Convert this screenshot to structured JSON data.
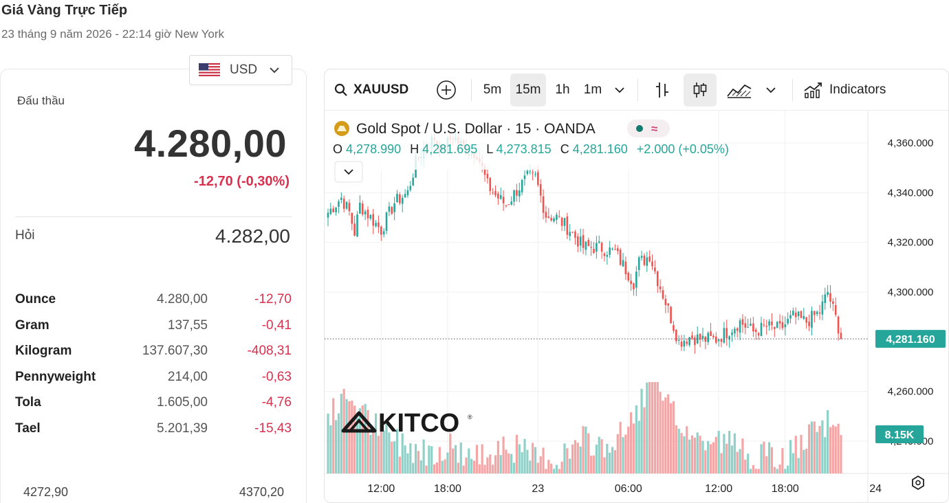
{
  "page": {
    "title": "Giá Vàng Trực Tiếp",
    "subtitle": "23 tháng 9 năm 2026 - 22:14 giờ New York"
  },
  "currency": {
    "code": "USD"
  },
  "quote": {
    "bid_label": "Đấu thầu",
    "bid_value": "4.280,00",
    "bid_change": "-12,70 (-0,30%)",
    "ask_label": "Hỏi",
    "ask_value": "4.282,00"
  },
  "units": [
    {
      "name": "Ounce",
      "price": "4.280,00",
      "change": "-12,70"
    },
    {
      "name": "Gram",
      "price": "137,55",
      "change": "-0,41"
    },
    {
      "name": "Kilogram",
      "price": "137.607,30",
      "change": "-408,31"
    },
    {
      "name": "Pennyweight",
      "price": "214,00",
      "change": "-0,63"
    },
    {
      "name": "Tola",
      "price": "1.605,00",
      "change": "-4,76"
    },
    {
      "name": "Tael",
      "price": "5.201,39",
      "change": "-15,43"
    }
  ],
  "range": {
    "low": "4272,90",
    "high": "4370,20"
  },
  "toolbar": {
    "symbol": "XAUUSD",
    "intervals": [
      "5m",
      "15m",
      "1h",
      "1m"
    ],
    "active_interval": "15m",
    "indicators_label": "Indicators"
  },
  "chart_header": {
    "title": "Gold Spot / U.S. Dollar · 15 · OANDA",
    "o_label": "O",
    "o_value": "4,278.990",
    "h_label": "H",
    "h_value": "4,281.695",
    "l_label": "L",
    "l_value": "4,273.815",
    "c_label": "C",
    "c_value": "4,281.160",
    "change": "+2.000 (+0.05%)"
  },
  "watermark": "KITCO",
  "colors": {
    "up": "#26a69a",
    "down": "#ef5350",
    "up_vol": "#8fd1c8",
    "down_vol": "#f4a6a6",
    "negative_text": "#d9304e",
    "price_tag": "#26a69a"
  },
  "chart_data": {
    "type": "candlestick",
    "x_ticks": [
      "12:00",
      "18:00",
      "23",
      "06:00",
      "12:00",
      "18:00",
      "24"
    ],
    "y_ticks": [
      "4,360.000",
      "4,340.000",
      "4,320.000",
      "4,300.000",
      "4,260.000",
      "4,240.000"
    ],
    "ylim": [
      4227,
      4373
    ],
    "last_price": 4281.16,
    "last_price_label": "4,281.160",
    "volume_label": "8.15K",
    "close_anchors": [
      [
        0,
        4332
      ],
      [
        5,
        4338
      ],
      [
        8,
        4332
      ],
      [
        10,
        4324
      ],
      [
        12,
        4335
      ],
      [
        16,
        4330
      ],
      [
        20,
        4325
      ],
      [
        25,
        4336
      ],
      [
        30,
        4340
      ],
      [
        33,
        4352
      ],
      [
        36,
        4358
      ],
      [
        40,
        4362
      ],
      [
        43,
        4357
      ],
      [
        47,
        4363
      ],
      [
        51,
        4358
      ],
      [
        56,
        4356
      ],
      [
        60,
        4343
      ],
      [
        63,
        4339
      ],
      [
        67,
        4335
      ],
      [
        71,
        4341
      ],
      [
        75,
        4346
      ],
      [
        78,
        4346
      ],
      [
        82,
        4331
      ],
      [
        86,
        4330
      ],
      [
        91,
        4325
      ],
      [
        96,
        4318
      ],
      [
        102,
        4318
      ],
      [
        108,
        4316
      ],
      [
        115,
        4304
      ],
      [
        117,
        4312
      ],
      [
        119,
        4313
      ],
      [
        121,
        4315
      ],
      [
        124,
        4305
      ],
      [
        127,
        4296
      ],
      [
        132,
        4280
      ],
      [
        136,
        4282
      ],
      [
        141,
        4281
      ],
      [
        146,
        4281
      ],
      [
        150,
        4284
      ],
      [
        155,
        4288
      ],
      [
        160,
        4284
      ],
      [
        165,
        4286
      ],
      [
        170,
        4285
      ],
      [
        175,
        4290
      ],
      [
        180,
        4288
      ],
      [
        185,
        4292
      ],
      [
        188,
        4300
      ],
      [
        192,
        4286
      ],
      [
        193,
        4281
      ]
    ],
    "volume_anchors": [
      [
        0,
        0.6
      ],
      [
        8,
        0.85
      ],
      [
        16,
        0.55
      ],
      [
        26,
        0.35
      ],
      [
        36,
        0.25
      ],
      [
        46,
        0.3
      ],
      [
        56,
        0.15
      ],
      [
        66,
        0.35
      ],
      [
        76,
        0.18
      ],
      [
        86,
        0.15
      ],
      [
        96,
        0.35
      ],
      [
        106,
        0.3
      ],
      [
        112,
        0.45
      ],
      [
        118,
        0.8
      ],
      [
        122,
        1.0
      ],
      [
        128,
        0.7
      ],
      [
        134,
        0.5
      ],
      [
        140,
        0.35
      ],
      [
        150,
        0.35
      ],
      [
        160,
        0.2
      ],
      [
        170,
        0.15
      ],
      [
        180,
        0.35
      ],
      [
        188,
        0.55
      ],
      [
        193,
        0.5
      ]
    ]
  }
}
